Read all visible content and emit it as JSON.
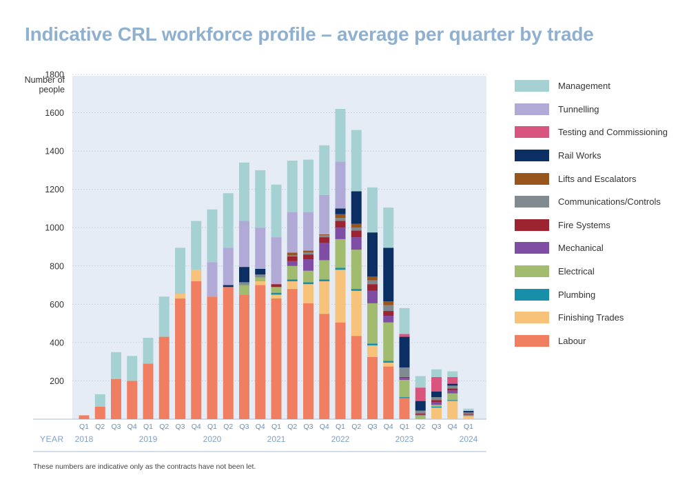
{
  "title": "Indicative CRL workforce profile – average per quarter by trade",
  "footnote": "These numbers are indicative only as the contracts have not been let.",
  "colors": {
    "Labour": "#f07f62",
    "Finishing Trades": "#f7c27a",
    "Plumbing": "#178fa9",
    "Electrical": "#a1bb6f",
    "Mechanical": "#7f4da3",
    "Fire Systems": "#9c2330",
    "Communications/Controls": "#7f8a91",
    "Lifts and Escalators": "#99561c",
    "Rail Works": "#0b2f63",
    "Testing and Commissioning": "#d9557e",
    "Tunnelling": "#b1a9d6",
    "Management": "#a6d1d3"
  },
  "legend": [
    "Management",
    "Tunnelling",
    "Testing and Commissioning",
    "Rail Works",
    "Lifts and Escalators",
    "Communications/Controls",
    "Fire Systems",
    "Mechanical",
    "Electrical",
    "Plumbing",
    "Finishing Trades",
    "Labour"
  ],
  "chart_data": {
    "type": "bar",
    "stacked": true,
    "title": "Indicative CRL workforce profile – average per quarter by trade",
    "ylabel": "Number of people",
    "xlabel": "YEAR",
    "ylim": [
      0,
      1800
    ],
    "yticks": [
      200,
      400,
      600,
      800,
      1000,
      1200,
      1400,
      1600,
      1800
    ],
    "grid": true,
    "legend_position": "right",
    "categories": [
      "Q1",
      "Q2",
      "Q3",
      "Q4",
      "Q1",
      "Q2",
      "Q3",
      "Q4",
      "Q1",
      "Q2",
      "Q3",
      "Q4",
      "Q1",
      "Q2",
      "Q3",
      "Q4",
      "Q1",
      "Q2",
      "Q3",
      "Q4",
      "Q1",
      "Q2",
      "Q3",
      "Q4",
      "Q1"
    ],
    "years": [
      {
        "label": "2018",
        "category_index": 0
      },
      {
        "label": "2019",
        "category_index": 4
      },
      {
        "label": "2020",
        "category_index": 8
      },
      {
        "label": "2021",
        "category_index": 12
      },
      {
        "label": "2022",
        "category_index": 16
      },
      {
        "label": "2023",
        "category_index": 20
      },
      {
        "label": "2024",
        "category_index": 24
      }
    ],
    "series": [
      {
        "name": "Labour",
        "values": [
          20,
          65,
          210,
          200,
          290,
          430,
          630,
          720,
          640,
          690,
          650,
          700,
          630,
          680,
          605,
          550,
          505,
          435,
          325,
          275,
          110,
          0,
          0,
          0,
          0
        ]
      },
      {
        "name": "Finishing Trades",
        "values": [
          0,
          0,
          0,
          0,
          0,
          0,
          25,
          60,
          0,
          0,
          0,
          20,
          20,
          40,
          100,
          170,
          275,
          235,
          60,
          20,
          0,
          0,
          60,
          95,
          15
        ]
      },
      {
        "name": "Plumbing",
        "values": [
          0,
          0,
          0,
          0,
          0,
          0,
          0,
          0,
          0,
          0,
          0,
          0,
          10,
          10,
          10,
          10,
          10,
          10,
          10,
          10,
          5,
          0,
          5,
          5,
          0
        ]
      },
      {
        "name": "Electrical",
        "values": [
          0,
          0,
          0,
          0,
          0,
          0,
          0,
          0,
          0,
          0,
          50,
          20,
          30,
          70,
          60,
          100,
          150,
          205,
          210,
          200,
          90,
          20,
          10,
          35,
          5
        ]
      },
      {
        "name": "Mechanical",
        "values": [
          0,
          0,
          0,
          0,
          0,
          0,
          0,
          0,
          0,
          0,
          0,
          0,
          0,
          25,
          60,
          90,
          60,
          65,
          65,
          35,
          10,
          5,
          15,
          15,
          5
        ]
      },
      {
        "name": "Fire Systems",
        "values": [
          0,
          0,
          0,
          0,
          0,
          0,
          0,
          0,
          0,
          0,
          0,
          0,
          15,
          25,
          25,
          30,
          35,
          35,
          35,
          25,
          5,
          5,
          10,
          10,
          3
        ]
      },
      {
        "name": "Communications/Controls",
        "values": [
          0,
          0,
          0,
          0,
          0,
          0,
          0,
          0,
          0,
          0,
          15,
          15,
          0,
          5,
          10,
          10,
          15,
          15,
          20,
          30,
          50,
          15,
          15,
          15,
          7
        ]
      },
      {
        "name": "Lifts and Escalators",
        "values": [
          0,
          0,
          0,
          0,
          0,
          0,
          0,
          0,
          0,
          0,
          0,
          0,
          0,
          15,
          10,
          5,
          20,
          20,
          20,
          20,
          0,
          0,
          0,
          0,
          0
        ]
      },
      {
        "name": "Rail Works",
        "values": [
          0,
          0,
          0,
          0,
          0,
          0,
          0,
          0,
          0,
          10,
          80,
          30,
          0,
          0,
          0,
          0,
          30,
          170,
          230,
          280,
          160,
          50,
          30,
          10,
          8
        ]
      },
      {
        "name": "Testing and Commissioning",
        "values": [
          0,
          0,
          0,
          0,
          0,
          0,
          0,
          0,
          0,
          0,
          0,
          0,
          0,
          0,
          0,
          0,
          0,
          0,
          0,
          0,
          15,
          70,
          75,
          35,
          0
        ]
      },
      {
        "name": "Tunnelling",
        "values": [
          0,
          0,
          0,
          0,
          0,
          0,
          0,
          0,
          180,
          195,
          240,
          215,
          245,
          210,
          200,
          205,
          245,
          0,
          0,
          0,
          0,
          0,
          0,
          0,
          0
        ]
      },
      {
        "name": "Management",
        "values": [
          0,
          65,
          140,
          130,
          135,
          210,
          240,
          255,
          275,
          285,
          305,
          300,
          275,
          270,
          275,
          260,
          275,
          320,
          235,
          210,
          135,
          60,
          40,
          30,
          12
        ]
      }
    ]
  }
}
